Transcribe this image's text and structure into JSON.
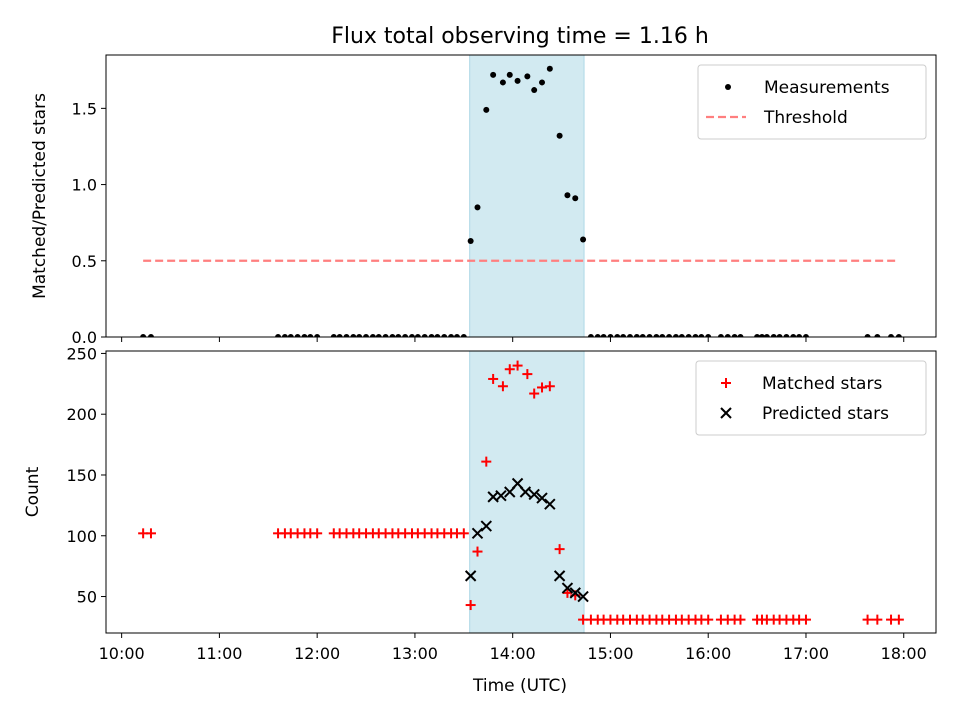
{
  "figure": {
    "title": "Flux total observing time = 1.16 h",
    "xlabel": "Time (UTC)",
    "x_tick_labels": [
      "10:00",
      "11:00",
      "12:00",
      "13:00",
      "14:00",
      "15:00",
      "16:00",
      "17:00",
      "18:00"
    ],
    "x_ticks_hours": [
      10,
      11,
      12,
      13,
      14,
      15,
      16,
      17,
      18
    ],
    "xlim_hours": [
      9.84,
      18.33
    ],
    "highlight_span_hours": [
      13.56,
      14.73
    ],
    "highlight_color": "#add8e6"
  },
  "chart_data": [
    {
      "type": "scatter",
      "ylabel": "Matched/Predicted stars",
      "ylim": [
        0,
        1.85
      ],
      "y_ticks": [
        0.0,
        0.5,
        1.0,
        1.5
      ],
      "y_tick_labels": [
        "0.0",
        "0.5",
        "1.0",
        "1.5"
      ],
      "legend_position": "top-right",
      "threshold": {
        "name": "Threshold",
        "value": 0.5,
        "x_range": [
          10.22,
          17.95
        ],
        "color": "#ff7f7f",
        "style": "dashed"
      },
      "series": [
        {
          "name": "Measurements",
          "color": "#000000",
          "marker": "dot",
          "x": [
            10.22,
            10.3,
            11.6,
            11.67,
            11.73,
            11.8,
            11.87,
            11.93,
            12.0,
            12.17,
            12.23,
            12.3,
            12.37,
            12.43,
            12.5,
            12.57,
            12.63,
            12.7,
            12.77,
            12.83,
            12.9,
            12.97,
            13.03,
            13.1,
            13.17,
            13.23,
            13.3,
            13.37,
            13.43,
            13.5,
            13.57,
            13.64,
            13.73,
            13.8,
            13.9,
            13.97,
            14.05,
            14.15,
            14.22,
            14.3,
            14.38,
            14.48,
            14.56,
            14.64,
            14.72,
            14.8,
            14.87,
            14.93,
            15.0,
            15.07,
            15.13,
            15.2,
            15.27,
            15.33,
            15.4,
            15.47,
            15.53,
            15.6,
            15.67,
            15.73,
            15.8,
            15.87,
            15.93,
            16.0,
            16.13,
            16.2,
            16.27,
            16.33,
            16.5,
            16.55,
            16.6,
            16.67,
            16.73,
            16.8,
            16.87,
            16.93,
            17.0,
            17.63,
            17.73,
            17.87,
            17.95
          ],
          "y": [
            0,
            0,
            0,
            0,
            0,
            0,
            0,
            0,
            0,
            0,
            0,
            0,
            0,
            0,
            0,
            0,
            0,
            0,
            0,
            0,
            0,
            0,
            0,
            0,
            0,
            0,
            0,
            0,
            0,
            0,
            0.63,
            0.85,
            1.49,
            1.72,
            1.67,
            1.72,
            1.68,
            1.71,
            1.62,
            1.67,
            1.76,
            1.32,
            0.93,
            0.91,
            0.64,
            0,
            0,
            0,
            0,
            0,
            0,
            0,
            0,
            0,
            0,
            0,
            0,
            0,
            0,
            0,
            0,
            0,
            0,
            0,
            0,
            0,
            0,
            0,
            0,
            0,
            0,
            0,
            0,
            0,
            0,
            0,
            0,
            0,
            0,
            0,
            0
          ]
        }
      ]
    },
    {
      "type": "scatter",
      "ylabel": "Count",
      "ylim": [
        20,
        252
      ],
      "y_ticks": [
        50,
        100,
        150,
        200,
        250
      ],
      "y_tick_labels": [
        "50",
        "100",
        "150",
        "200",
        "250"
      ],
      "legend_position": "top-right",
      "series": [
        {
          "name": "Matched stars",
          "color": "#ff0000",
          "marker": "plus",
          "x": [
            10.22,
            10.3,
            11.6,
            11.67,
            11.73,
            11.8,
            11.87,
            11.93,
            12.0,
            12.17,
            12.23,
            12.3,
            12.37,
            12.43,
            12.5,
            12.57,
            12.63,
            12.7,
            12.77,
            12.83,
            12.9,
            12.97,
            13.03,
            13.1,
            13.17,
            13.23,
            13.3,
            13.37,
            13.43,
            13.5,
            13.57,
            13.64,
            13.73,
            13.8,
            13.9,
            13.97,
            14.05,
            14.15,
            14.22,
            14.3,
            14.38,
            14.48,
            14.56,
            14.64,
            14.72,
            14.8,
            14.87,
            14.93,
            15.0,
            15.07,
            15.13,
            15.2,
            15.27,
            15.33,
            15.4,
            15.47,
            15.53,
            15.6,
            15.67,
            15.73,
            15.8,
            15.87,
            15.93,
            16.0,
            16.13,
            16.2,
            16.27,
            16.33,
            16.5,
            16.55,
            16.6,
            16.67,
            16.73,
            16.8,
            16.87,
            16.93,
            17.0,
            17.63,
            17.73,
            17.87,
            17.95
          ],
          "y": [
            102,
            102,
            102,
            102,
            102,
            102,
            102,
            102,
            102,
            102,
            102,
            102,
            102,
            102,
            102,
            102,
            102,
            102,
            102,
            102,
            102,
            102,
            102,
            102,
            102,
            102,
            102,
            102,
            102,
            102,
            43,
            87,
            161,
            229,
            223,
            237,
            240,
            233,
            217,
            222,
            223,
            89,
            53,
            51,
            31,
            31,
            31,
            31,
            31,
            31,
            31,
            31,
            31,
            31,
            31,
            31,
            31,
            31,
            31,
            31,
            31,
            31,
            31,
            31,
            31,
            31,
            31,
            31,
            31,
            31,
            31,
            31,
            31,
            31,
            31,
            31,
            31,
            31,
            31,
            31,
            31
          ]
        },
        {
          "name": "Predicted stars",
          "color": "#000000",
          "marker": "x",
          "x": [
            13.57,
            13.64,
            13.73,
            13.8,
            13.88,
            13.97,
            14.05,
            14.13,
            14.22,
            14.3,
            14.38,
            14.48,
            14.56,
            14.64,
            14.72
          ],
          "y": [
            67,
            102,
            108,
            132,
            133,
            136,
            143,
            136,
            134,
            131,
            126,
            67,
            57,
            53,
            50
          ]
        }
      ]
    }
  ]
}
